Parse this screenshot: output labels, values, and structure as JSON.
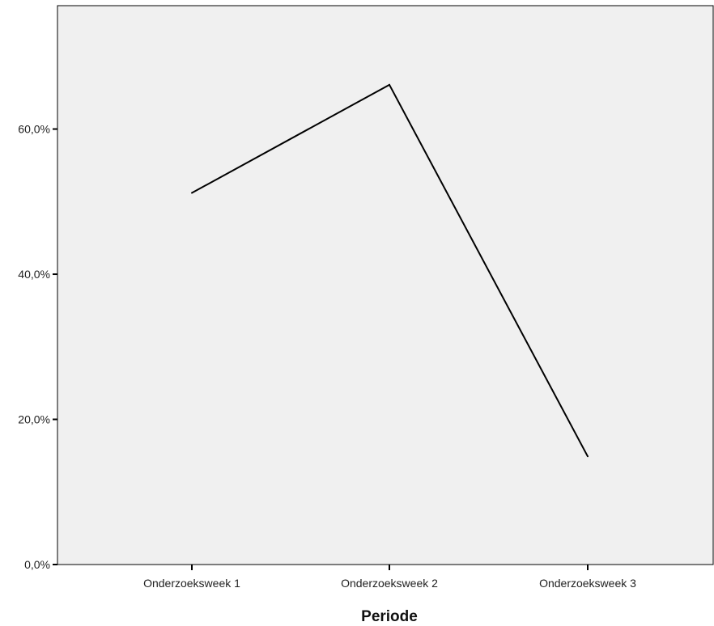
{
  "chart_data": {
    "type": "line",
    "categories": [
      "Onderzoeksweek 1",
      "Onderzoeksweek 2",
      "Onderzoeksweek 3"
    ],
    "series": [
      {
        "values": [
          51.2,
          66.1,
          14.9
        ],
        "color": "#000000"
      }
    ],
    "ylim": [
      0,
      77
    ],
    "yticks": [
      0,
      20,
      40,
      60
    ],
    "ytick_labels": [
      "0,0%",
      "20,0%",
      "40,0%",
      "60,0%"
    ],
    "xlabel": "Periode",
    "ylabel": "",
    "title": "",
    "grid": false,
    "plot_background": "#f0f0f0",
    "axis_color": "#000000"
  }
}
